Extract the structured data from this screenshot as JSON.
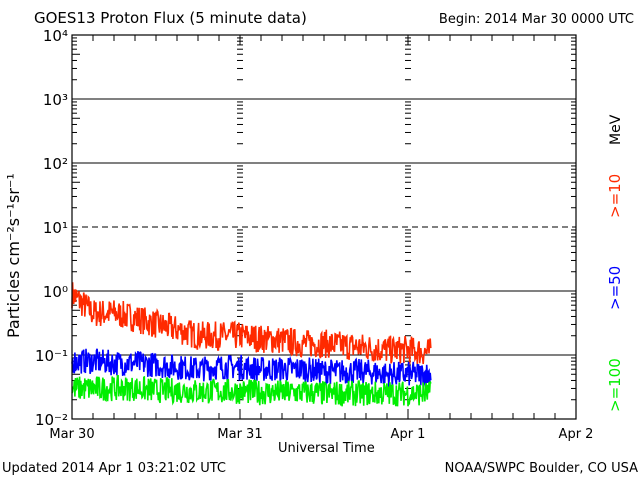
{
  "chart_data": {
    "type": "line",
    "title": "GOES13 Proton Flux (5 minute data)",
    "begin": "Begin: 2014 Mar 30 0000 UTC",
    "xlabel": "Universal Time",
    "ylabel": "Particles cm⁻²s⁻¹sr⁻¹",
    "yscale": "log",
    "ylim": [
      0.01,
      10000
    ],
    "ytick_labels": [
      "10⁴",
      "10³",
      "10²",
      "10¹",
      "10⁰",
      "10⁻¹",
      "10⁻²"
    ],
    "xlim_hours": [
      0,
      72
    ],
    "xtick_labels": [
      "Mar 30",
      "Mar 31",
      "Apr 1",
      "Apr 2"
    ],
    "unit_label": "MeV",
    "x_hours": [
      0,
      3,
      6,
      9,
      12,
      15,
      18,
      21,
      24,
      27,
      30,
      33,
      36,
      39,
      42,
      45,
      48,
      51
    ],
    "series": [
      {
        "name": ">=10",
        "color": "#ff2a00",
        "values": [
          0.9,
          0.45,
          0.45,
          0.38,
          0.3,
          0.25,
          0.2,
          0.2,
          0.2,
          0.18,
          0.17,
          0.15,
          0.15,
          0.14,
          0.13,
          0.12,
          0.12,
          0.11
        ]
      },
      {
        "name": ">=50",
        "color": "#0000ff",
        "values": [
          0.08,
          0.08,
          0.075,
          0.075,
          0.07,
          0.065,
          0.06,
          0.065,
          0.065,
          0.06,
          0.06,
          0.06,
          0.055,
          0.055,
          0.055,
          0.05,
          0.05,
          0.05
        ]
      },
      {
        "name": ">=100",
        "color": "#00ee00",
        "values": [
          0.03,
          0.03,
          0.03,
          0.03,
          0.028,
          0.028,
          0.027,
          0.027,
          0.027,
          0.026,
          0.026,
          0.026,
          0.025,
          0.025,
          0.025,
          0.025,
          0.025,
          0.025
        ]
      }
    ]
  },
  "footer": {
    "updated": "Updated 2014 Apr  1 03:21:02 UTC",
    "source": "NOAA/SWPC Boulder, CO USA"
  }
}
